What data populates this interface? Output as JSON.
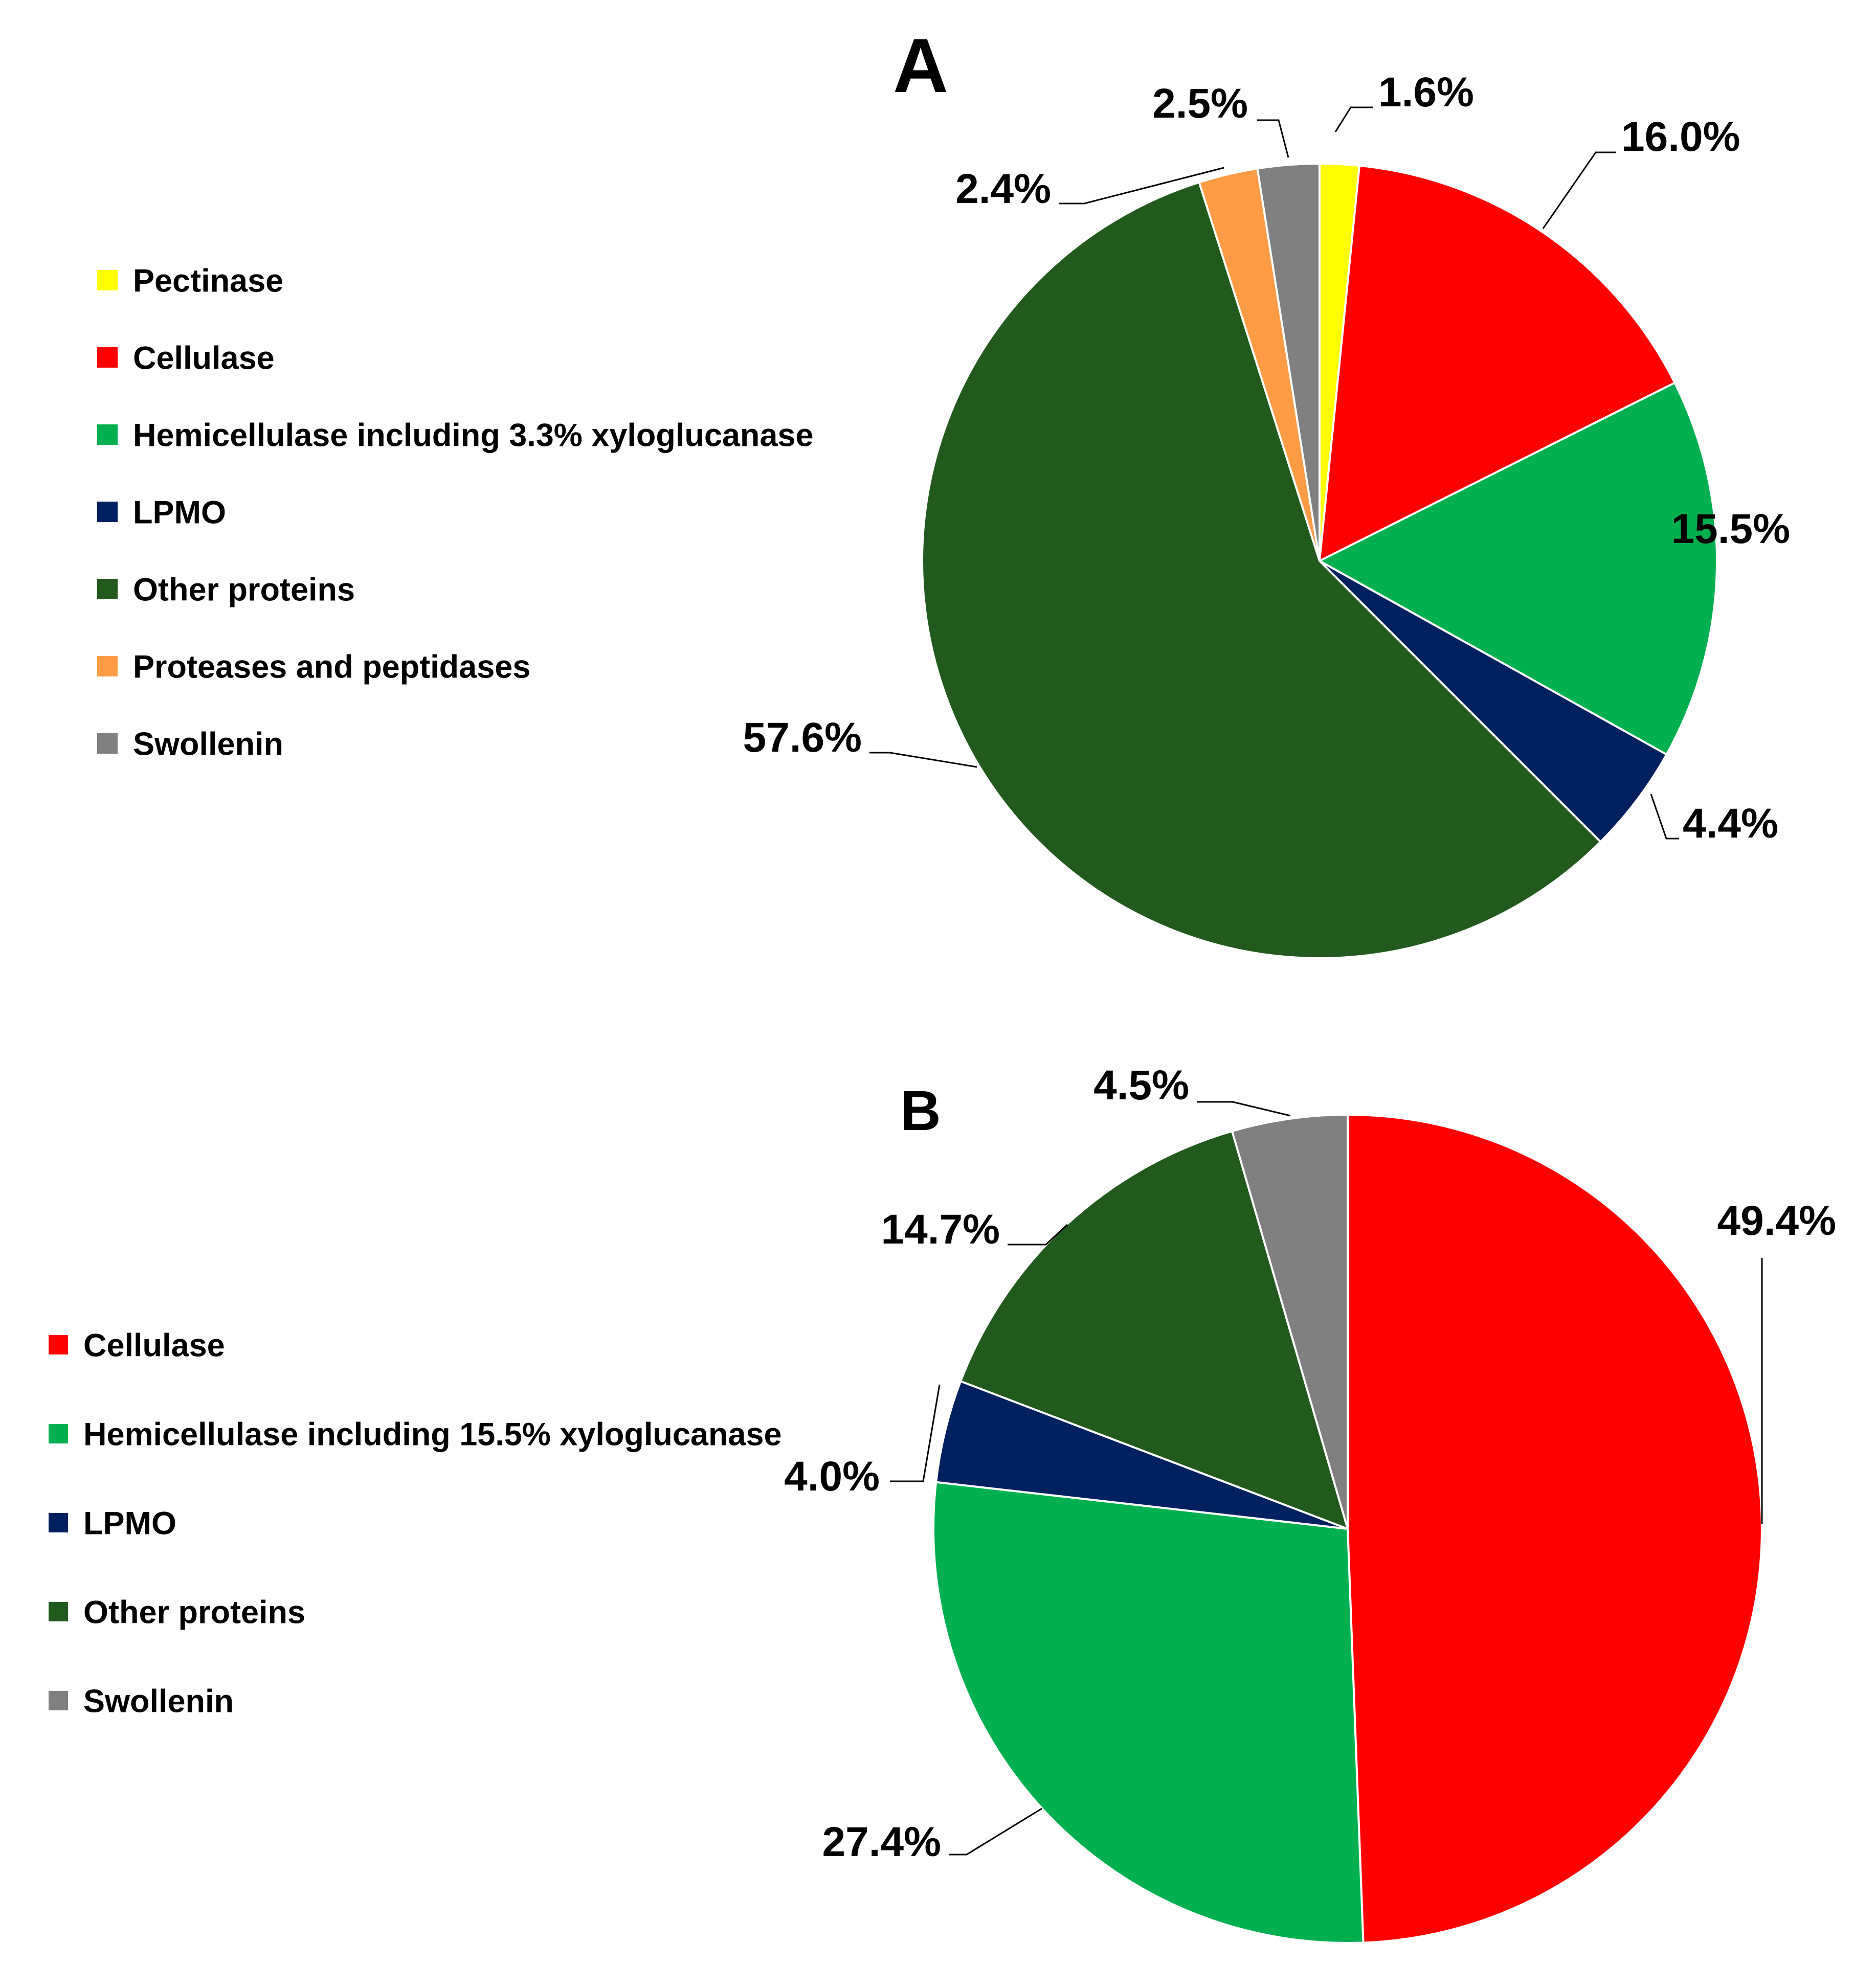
{
  "chart_data": [
    {
      "type": "pie",
      "title": "A",
      "start_angle_deg": 0,
      "direction": "clockwise",
      "legend_position": "left",
      "categories": [
        "Pectinase",
        "Cellulase",
        "Hemicellulase including 3.3% xyloglucanase",
        "LPMO",
        "Other proteins",
        "Proteases and peptidases",
        "Swollenin"
      ],
      "values": [
        1.6,
        16.0,
        15.5,
        4.4,
        57.6,
        2.4,
        2.5
      ],
      "labels": [
        "1.6%",
        "16.0%",
        "15.5%",
        "4.4%",
        "57.6%",
        "2.4%",
        "2.5%"
      ],
      "colors": [
        "#FFFF00",
        "#FF0000",
        "#00B050",
        "#002060",
        "#225A1E",
        "#FF9B45",
        "#808080"
      ]
    },
    {
      "type": "pie",
      "title": "B",
      "start_angle_deg": 0,
      "direction": "clockwise",
      "legend_position": "left",
      "categories": [
        "Cellulase",
        "Hemicellulase including 15.5% xyloglucanase",
        "LPMO",
        "Other proteins",
        "Swollenin"
      ],
      "values": [
        49.4,
        27.4,
        4.0,
        14.7,
        4.5
      ],
      "labels": [
        "49.4%",
        "27.4%",
        "4.0%",
        "14.7%",
        "4.5%"
      ],
      "colors": [
        "#FF0000",
        "#00B050",
        "#002060",
        "#225A1E",
        "#808080"
      ]
    }
  ]
}
